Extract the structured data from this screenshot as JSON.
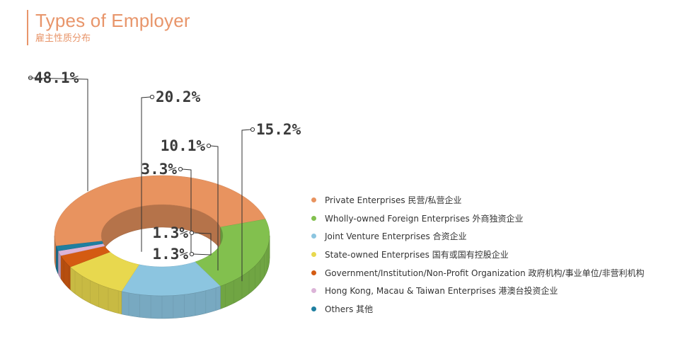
{
  "header": {
    "title": "Types of Employer",
    "subtitle": "雇主性质分布"
  },
  "chart_data": {
    "type": "pie",
    "style": "3d-donut",
    "title": "Types of Employer",
    "subtitle": "雇主性质分布",
    "legend_position": "right",
    "series": [
      {
        "label": "Private Enterprises 民营/私营企业",
        "value": 48.1,
        "value_label": "48.1%",
        "color": "#e8935f"
      },
      {
        "label": "Wholly-owned Foreign Enterprises 外商独资企业",
        "value": 20.2,
        "value_label": "20.2%",
        "color": "#82c04e"
      },
      {
        "label": "Joint Venture Enterprises 合资企业",
        "value": 15.2,
        "value_label": "15.2%",
        "color": "#8cc5e0"
      },
      {
        "label": "State-owned Enterprises 国有或国有控股企业",
        "value": 10.1,
        "value_label": "10.1%",
        "color": "#e8d84e"
      },
      {
        "label": "Government/Institution/Non-Profit Organization 政府机构/事业单位/非营利机构",
        "value": 3.3,
        "value_label": "3.3%",
        "color": "#d45b12"
      },
      {
        "label": "Hong Kong, Macau & Taiwan Enterprises 港澳台投资企业",
        "value": 1.3,
        "value_label": "1.3%",
        "color": "#dcb4d8"
      },
      {
        "label": "Others 其他",
        "value": 1.3,
        "value_label": "1.3%",
        "color": "#1f7fa0"
      }
    ]
  }
}
